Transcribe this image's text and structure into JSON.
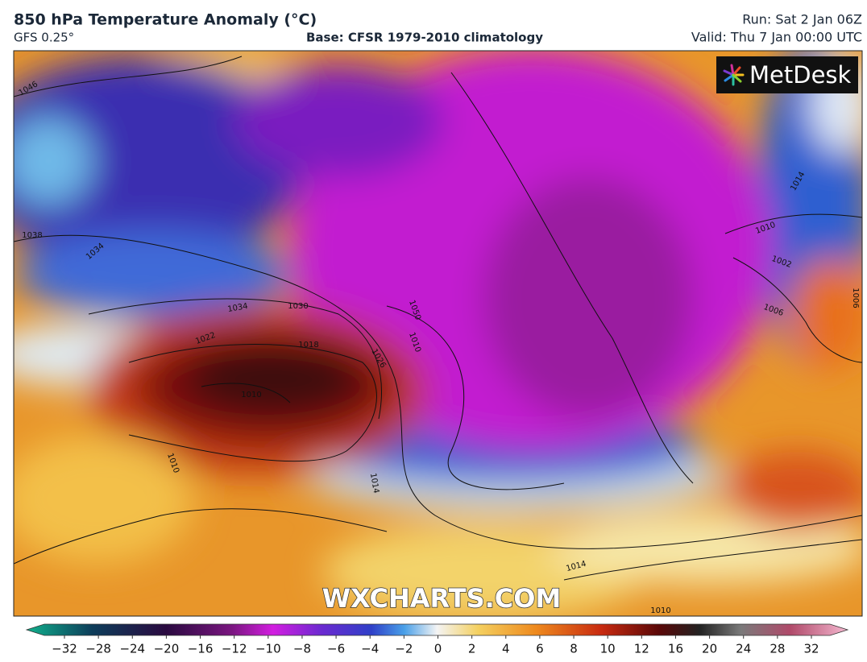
{
  "header": {
    "title": "850 hPa Temperature Anomaly (°C)",
    "model": "GFS 0.25°",
    "base": "Base: CFSR 1979-2010 climatology",
    "run": "Run: Sat 2 Jan 06Z",
    "valid": "Valid: Thu 7 Jan 00:00 UTC"
  },
  "logo": "MetDesk",
  "watermark": "WXCHARTS.COM",
  "isobar_labels": [
    "1046",
    "1038",
    "1034",
    "1034",
    "1030",
    "1018",
    "1010",
    "1026",
    "1050",
    "1010",
    "1014",
    "1010",
    "1002",
    "1006",
    "1006",
    "1014",
    "1010",
    "1014",
    "1010",
    "1022"
  ],
  "colorbar": {
    "ticks": [
      {
        "value": -32,
        "label": "−32"
      },
      {
        "value": -28,
        "label": "−28"
      },
      {
        "value": -24,
        "label": "−24"
      },
      {
        "value": -20,
        "label": "−20"
      },
      {
        "value": -16,
        "label": "−16"
      },
      {
        "value": -12,
        "label": "−12"
      },
      {
        "value": -10,
        "label": "−10"
      },
      {
        "value": -8,
        "label": "−8"
      },
      {
        "value": -6,
        "label": "−6"
      },
      {
        "value": -4,
        "label": "−4"
      },
      {
        "value": -2,
        "label": "−2"
      },
      0,
      2,
      4,
      6,
      8,
      10,
      12,
      16,
      20,
      24,
      28,
      32
    ]
  }
}
